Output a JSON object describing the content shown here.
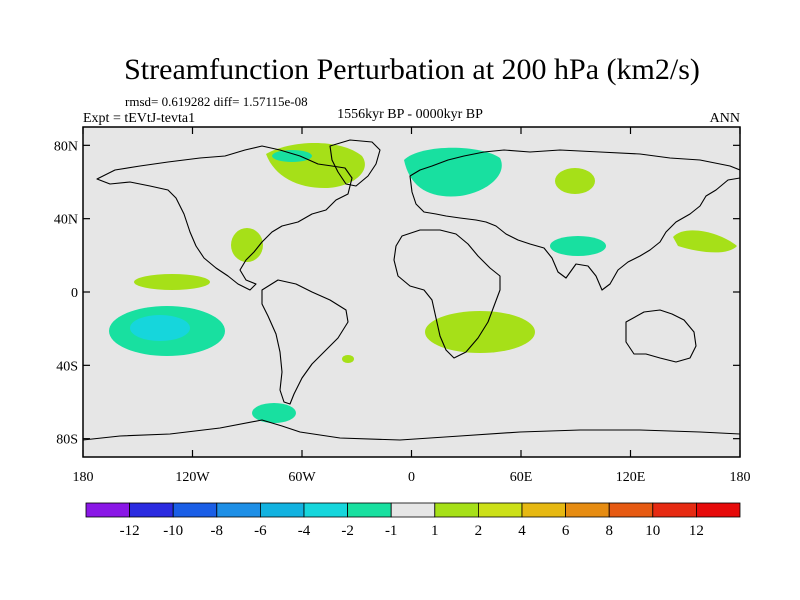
{
  "chart_data": {
    "type": "map",
    "title": "Streamfunction Perturbation at 200 hPa (km2/s)",
    "stats": "rmsd= 0.619282 diff= 1.57115e-08",
    "experiment": "Expt = tEVtJ-tevta1",
    "period": "1556kyr BP - 0000kyr BP",
    "season": "ANN",
    "lat_ticks": [
      "80N",
      "40N",
      "0",
      "40S",
      "80S"
    ],
    "lat_values": [
      80,
      40,
      0,
      -40,
      -80
    ],
    "lon_ticks": [
      "180",
      "120W",
      "60W",
      "0",
      "60E",
      "120E",
      "180"
    ],
    "lon_values": [
      -180,
      -120,
      -60,
      0,
      60,
      120,
      180
    ],
    "lon_range": [
      -180,
      180
    ],
    "lat_range": [
      -90,
      90
    ],
    "colorbar": {
      "labels": [
        "-12",
        "-10",
        "-8",
        "-6",
        "-4",
        "-2",
        "-1",
        "1",
        "2",
        "4",
        "6",
        "8",
        "10",
        "12"
      ],
      "colors": [
        "#8a17e6",
        "#2b2be0",
        "#1a5ee6",
        "#1e8fe6",
        "#12b2e0",
        "#16d6dc",
        "#18e0a0",
        "#e6e6e6",
        "#a6e018",
        "#cce018",
        "#e6b812",
        "#e68c12",
        "#e65a12",
        "#e62a12",
        "#e60a0a"
      ]
    },
    "anomalies": [
      {
        "name": "Pacific south of equator",
        "lon": -130,
        "lat": -18,
        "value": -2,
        "core": -4
      },
      {
        "name": "Pacific north of equator",
        "lon": -128,
        "lat": 8,
        "value": 1
      },
      {
        "name": "Canada",
        "lon": -52,
        "lat": 72,
        "value": 1,
        "core": -1
      },
      {
        "name": "Gulf of Mexico",
        "lon": -86,
        "lat": 28,
        "value": 1
      },
      {
        "name": "Scandinavia",
        "lon": 15,
        "lat": 72,
        "value": -1
      },
      {
        "name": "Central Siberia",
        "lon": 90,
        "lat": 64,
        "value": 1
      },
      {
        "name": "India",
        "lon": 90,
        "lat": 28,
        "value": -1
      },
      {
        "name": "North Pacific off Japan",
        "lon": 160,
        "lat": 30,
        "value": 1
      },
      {
        "name": "Southern Africa",
        "lon": 25,
        "lat": -20,
        "value": 1
      },
      {
        "name": "South Atlantic island",
        "lon": -35,
        "lat": -35,
        "value": 1
      },
      {
        "name": "Southern Ocean off Patagonia",
        "lon": -70,
        "lat": -60,
        "value": -1
      }
    ]
  }
}
